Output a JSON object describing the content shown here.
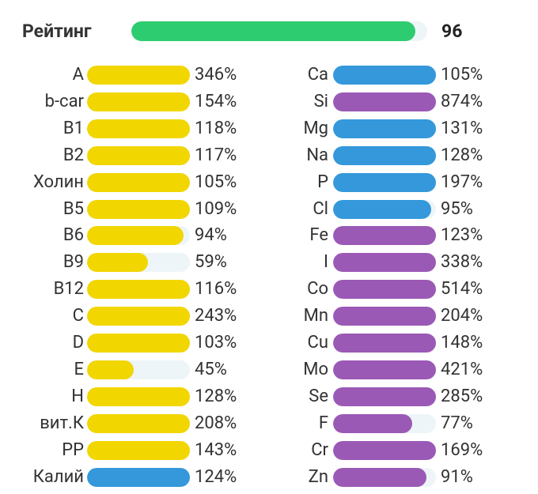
{
  "rating": {
    "label": "Рейтинг",
    "value": 96,
    "color": "#2ecc71"
  },
  "columns": [
    [
      {
        "name": "A",
        "value": 346,
        "label": "346%",
        "color": "#f2d600"
      },
      {
        "name": "b-car",
        "value": 154,
        "label": "154%",
        "color": "#f2d600"
      },
      {
        "name": "B1",
        "value": 118,
        "label": "118%",
        "color": "#f2d600"
      },
      {
        "name": "B2",
        "value": 117,
        "label": "117%",
        "color": "#f2d600"
      },
      {
        "name": "Холин",
        "value": 105,
        "label": "105%",
        "color": "#f2d600"
      },
      {
        "name": "B5",
        "value": 109,
        "label": "109%",
        "color": "#f2d600"
      },
      {
        "name": "B6",
        "value": 94,
        "label": "94%",
        "color": "#f2d600"
      },
      {
        "name": "B9",
        "value": 59,
        "label": "59%",
        "color": "#f2d600"
      },
      {
        "name": "B12",
        "value": 116,
        "label": "116%",
        "color": "#f2d600"
      },
      {
        "name": "C",
        "value": 243,
        "label": "243%",
        "color": "#f2d600"
      },
      {
        "name": "D",
        "value": 103,
        "label": "103%",
        "color": "#f2d600"
      },
      {
        "name": "E",
        "value": 45,
        "label": "45%",
        "color": "#f2d600"
      },
      {
        "name": "H",
        "value": 128,
        "label": "128%",
        "color": "#f2d600"
      },
      {
        "name": "вит.К",
        "value": 208,
        "label": "208%",
        "color": "#f2d600"
      },
      {
        "name": "PP",
        "value": 143,
        "label": "143%",
        "color": "#f2d600"
      },
      {
        "name": "Калий",
        "value": 124,
        "label": "124%",
        "color": "#3498db"
      }
    ],
    [
      {
        "name": "Ca",
        "value": 105,
        "label": "105%",
        "color": "#3498db"
      },
      {
        "name": "Si",
        "value": 874,
        "label": "874%",
        "color": "#9b59b6"
      },
      {
        "name": "Mg",
        "value": 131,
        "label": "131%",
        "color": "#3498db"
      },
      {
        "name": "Na",
        "value": 128,
        "label": "128%",
        "color": "#3498db"
      },
      {
        "name": "P",
        "value": 197,
        "label": "197%",
        "color": "#3498db"
      },
      {
        "name": "Cl",
        "value": 95,
        "label": "95%",
        "color": "#3498db"
      },
      {
        "name": "Fe",
        "value": 123,
        "label": "123%",
        "color": "#9b59b6"
      },
      {
        "name": "I",
        "value": 338,
        "label": "338%",
        "color": "#9b59b6"
      },
      {
        "name": "Co",
        "value": 514,
        "label": "514%",
        "color": "#9b59b6"
      },
      {
        "name": "Mn",
        "value": 204,
        "label": "204%",
        "color": "#9b59b6"
      },
      {
        "name": "Cu",
        "value": 148,
        "label": "148%",
        "color": "#9b59b6"
      },
      {
        "name": "Mo",
        "value": 421,
        "label": "421%",
        "color": "#9b59b6"
      },
      {
        "name": "Se",
        "value": 285,
        "label": "285%",
        "color": "#9b59b6"
      },
      {
        "name": "F",
        "value": 77,
        "label": "77%",
        "color": "#9b59b6"
      },
      {
        "name": "Cr",
        "value": 169,
        "label": "169%",
        "color": "#9b59b6"
      },
      {
        "name": "Zn",
        "value": 91,
        "label": "91%",
        "color": "#9b59b6"
      }
    ]
  ]
}
